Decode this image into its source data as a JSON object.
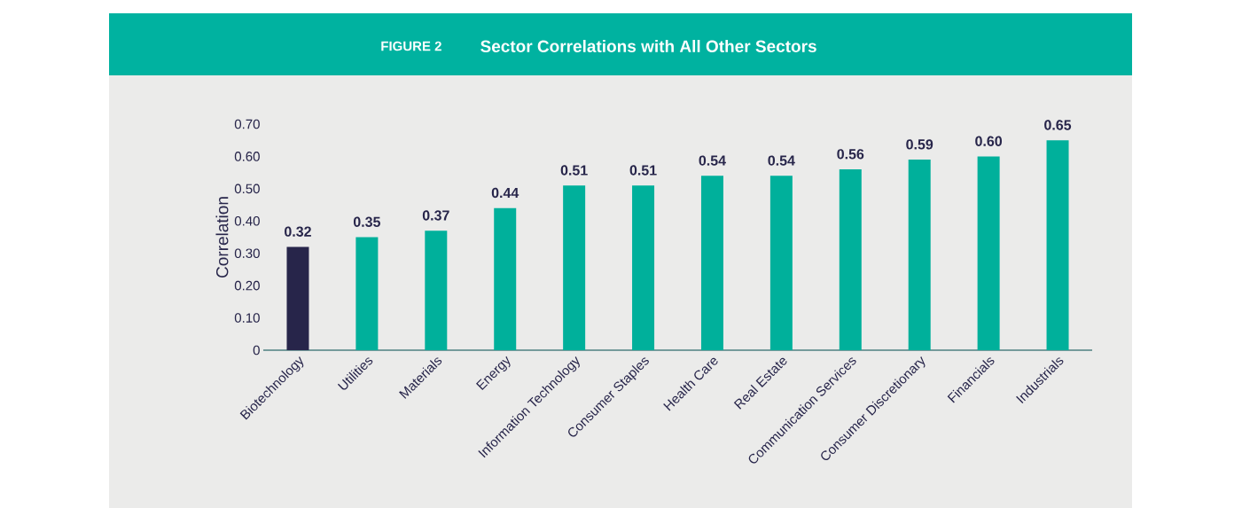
{
  "chart_data": {
    "type": "bar",
    "title": "Sector Correlations with All Other Sectors",
    "annotations": [
      "FIGURE 2"
    ],
    "ylabel": "Correlation",
    "categories": [
      "Biotechnology",
      "Utilities",
      "Materials",
      "Energy",
      "Information Technology",
      "Consumer Staples",
      "Health Care",
      "Real Estate",
      "Communication Services",
      "Consumer Discretionary",
      "Financials",
      "Industrials"
    ],
    "values": [
      0.32,
      0.35,
      0.37,
      0.44,
      0.51,
      0.51,
      0.54,
      0.54,
      0.56,
      0.59,
      0.6,
      0.65
    ],
    "value_labels": [
      "0.32",
      "0.35",
      "0.37",
      "0.44",
      "0.51",
      "0.51",
      "0.54",
      "0.54",
      "0.56",
      "0.59",
      "0.60",
      "0.65"
    ],
    "colors": [
      "#27254a",
      "#00b09b",
      "#00b09b",
      "#00b09b",
      "#00b09b",
      "#00b09b",
      "#00b09b",
      "#00b09b",
      "#00b09b",
      "#00b09b",
      "#00b09b",
      "#00b09b"
    ],
    "ylim": [
      0,
      0.7
    ],
    "yticks": [
      {
        "value": 0,
        "label": "0"
      },
      {
        "value": 0.1,
        "label": "0.10"
      },
      {
        "value": 0.2,
        "label": "0.20"
      },
      {
        "value": 0.3,
        "label": "0.30"
      },
      {
        "value": 0.4,
        "label": "0.40"
      },
      {
        "value": 0.5,
        "label": "0.50"
      },
      {
        "value": 0.6,
        "label": "0.60"
      },
      {
        "value": 0.7,
        "label": "0.70"
      }
    ],
    "grid": false
  }
}
